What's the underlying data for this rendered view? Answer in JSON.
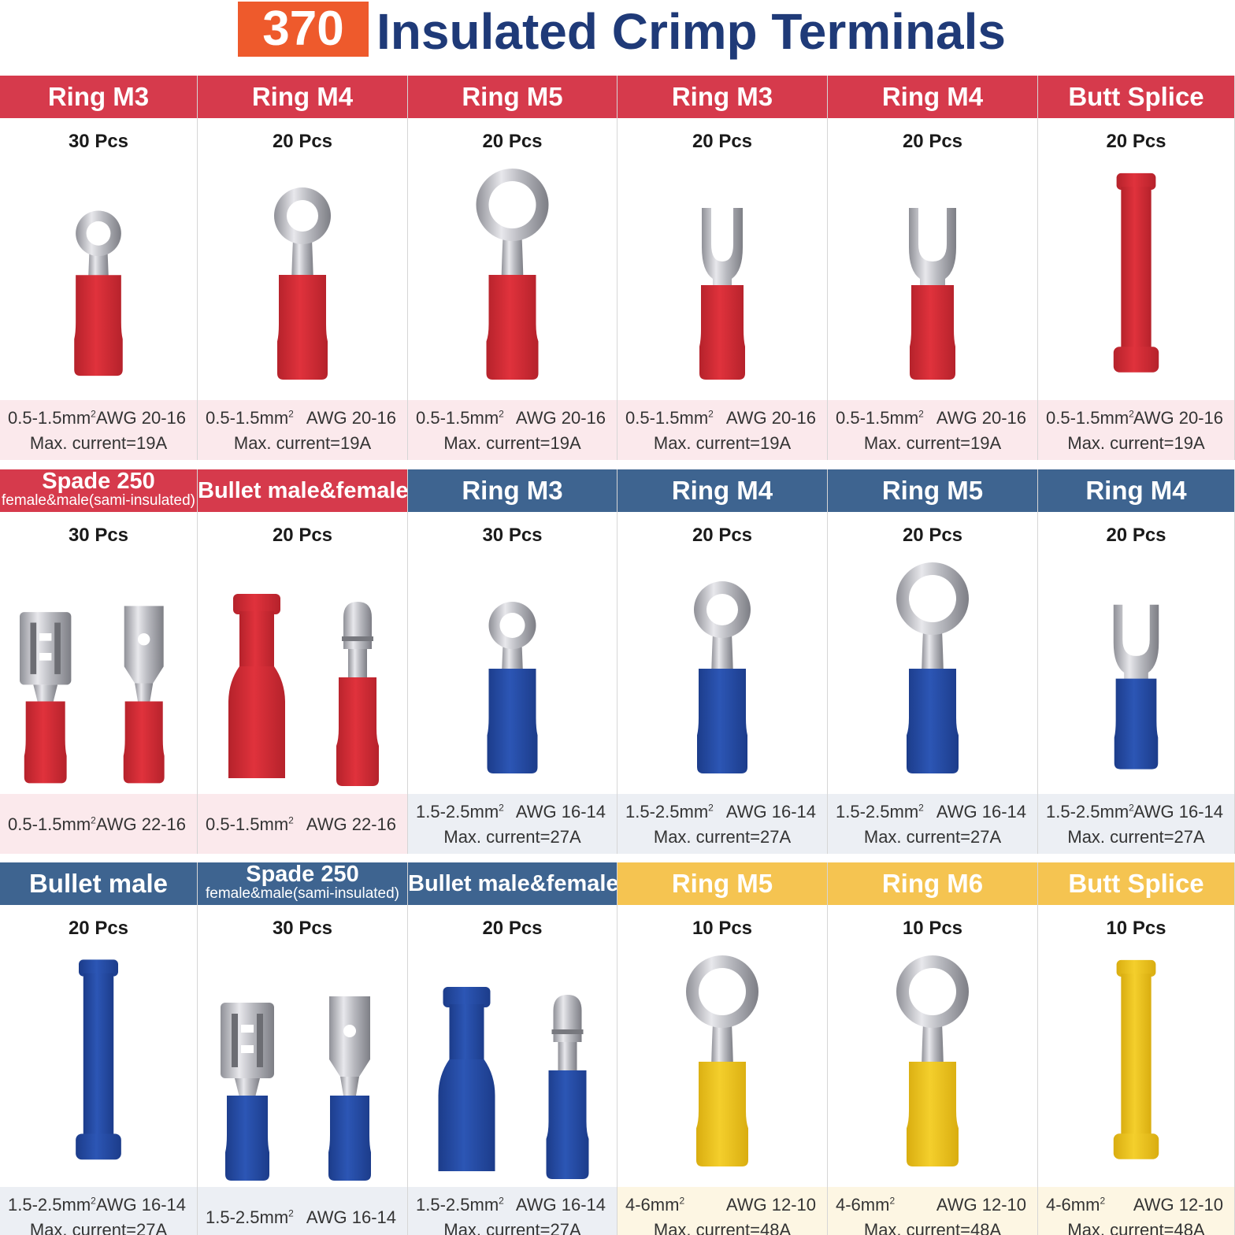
{
  "title": {
    "count": "370",
    "text": "Insulated Crimp Terminals"
  },
  "rows": [
    [
      {
        "head": "Ring M3",
        "sub": "",
        "pcs": "30 Pcs",
        "area": "0.5-1.5mm",
        "awg": "AWG 20-16",
        "current": "Max. current=19A",
        "color": "red",
        "icon": "ring-terminal-small-icon"
      },
      {
        "head": "Ring M4",
        "sub": "",
        "pcs": "20 Pcs",
        "area": "0.5-1.5mm",
        "awg": "AWG 20-16",
        "current": "Max. current=19A",
        "color": "red",
        "icon": "ring-terminal-medium-icon"
      },
      {
        "head": "Ring M5",
        "sub": "",
        "pcs": "20 Pcs",
        "area": "0.5-1.5mm",
        "awg": "AWG 20-16",
        "current": "Max. current=19A",
        "color": "red",
        "icon": "ring-terminal-large-icon"
      },
      {
        "head": "Ring M3",
        "sub": "",
        "pcs": "20 Pcs",
        "area": "0.5-1.5mm",
        "awg": "AWG 20-16",
        "current": "Max. current=19A",
        "color": "red",
        "icon": "fork-terminal-small-icon"
      },
      {
        "head": "Ring M4",
        "sub": "",
        "pcs": "20 Pcs",
        "area": "0.5-1.5mm",
        "awg": "AWG 20-16",
        "current": "Max. current=19A",
        "color": "red",
        "icon": "fork-terminal-medium-icon"
      },
      {
        "head": "Butt Splice",
        "sub": "",
        "pcs": "20 Pcs",
        "area": "0.5-1.5mm",
        "awg": "AWG 20-16",
        "current": "Max. current=19A",
        "color": "red",
        "icon": "butt-splice-icon"
      }
    ],
    [
      {
        "head": "Spade 250",
        "sub": "female&male(sami-insulated)",
        "pcs": "30 Pcs",
        "area": "0.5-1.5mm",
        "awg": "AWG 22-16",
        "current": "",
        "color": "red",
        "icon": "spade-terminal-pair-icon"
      },
      {
        "head": "Bullet male&female",
        "sub": "",
        "pcs": "20 Pcs",
        "area": "0.5-1.5mm",
        "awg": "AWG 22-16",
        "current": "",
        "color": "red",
        "icon": "bullet-terminal-pair-icon"
      },
      {
        "head": "Ring M3",
        "sub": "",
        "pcs": "30 Pcs",
        "area": "1.5-2.5mm",
        "awg": "AWG 16-14",
        "current": "Max. current=27A",
        "color": "blue",
        "icon": "ring-terminal-small-icon"
      },
      {
        "head": "Ring M4",
        "sub": "",
        "pcs": "20 Pcs",
        "area": "1.5-2.5mm",
        "awg": "AWG 16-14",
        "current": "Max. current=27A",
        "color": "blue",
        "icon": "ring-terminal-medium-icon"
      },
      {
        "head": "Ring M5",
        "sub": "",
        "pcs": "20 Pcs",
        "area": "1.5-2.5mm",
        "awg": "AWG 16-14",
        "current": "Max. current=27A",
        "color": "blue",
        "icon": "ring-terminal-large-icon"
      },
      {
        "head": "Ring M4",
        "sub": "",
        "pcs": "20 Pcs",
        "area": "1.5-2.5mm",
        "awg": "AWG 16-14",
        "current": "Max. current=27A",
        "color": "blue",
        "icon": "fork-terminal-medium-icon"
      }
    ],
    [
      {
        "head": "Bullet male",
        "sub": "",
        "pcs": "20 Pcs",
        "area": "1.5-2.5mm",
        "awg": "AWG 16-14",
        "current": "Max. current=27A",
        "color": "blue",
        "icon": "butt-splice-icon"
      },
      {
        "head": "Spade 250",
        "sub": "female&male(sami-insulated)",
        "pcs": "30 Pcs",
        "area": "1.5-2.5mm",
        "awg": "AWG 16-14",
        "current": "",
        "color": "blue",
        "icon": "spade-terminal-pair-icon"
      },
      {
        "head": "Bullet male&female",
        "sub": "",
        "pcs": "20 Pcs",
        "area": "1.5-2.5mm",
        "awg": "AWG 16-14",
        "current": "Max. current=27A",
        "color": "blue",
        "icon": "bullet-terminal-pair-icon"
      },
      {
        "head": "Ring M5",
        "sub": "",
        "pcs": "10 Pcs",
        "area": "4-6mm",
        "awg": "AWG 12-10",
        "current": "Max. current=48A",
        "color": "yellow",
        "icon": "ring-terminal-large-icon"
      },
      {
        "head": "Ring M6",
        "sub": "",
        "pcs": "10 Pcs",
        "area": "4-6mm",
        "awg": "AWG 12-10",
        "current": "Max. current=48A",
        "color": "yellow",
        "icon": "ring-terminal-large-icon"
      },
      {
        "head": "Butt Splice",
        "sub": "",
        "pcs": "10 Pcs",
        "area": "4-6mm",
        "awg": "AWG 12-10",
        "current": "Max. current=48A",
        "color": "yellow",
        "icon": "butt-splice-icon"
      }
    ]
  ],
  "colors": {
    "red": "#e0323c",
    "red_dark": "#b5222b",
    "blue": "#2c56b5",
    "blue_dark": "#1c3c8a",
    "yellow": "#f4cf2c",
    "yellow_dark": "#d9ad10",
    "metal": "#c8c8cc",
    "metal_dark": "#8e8e94"
  },
  "units": {
    "squared": "2"
  }
}
